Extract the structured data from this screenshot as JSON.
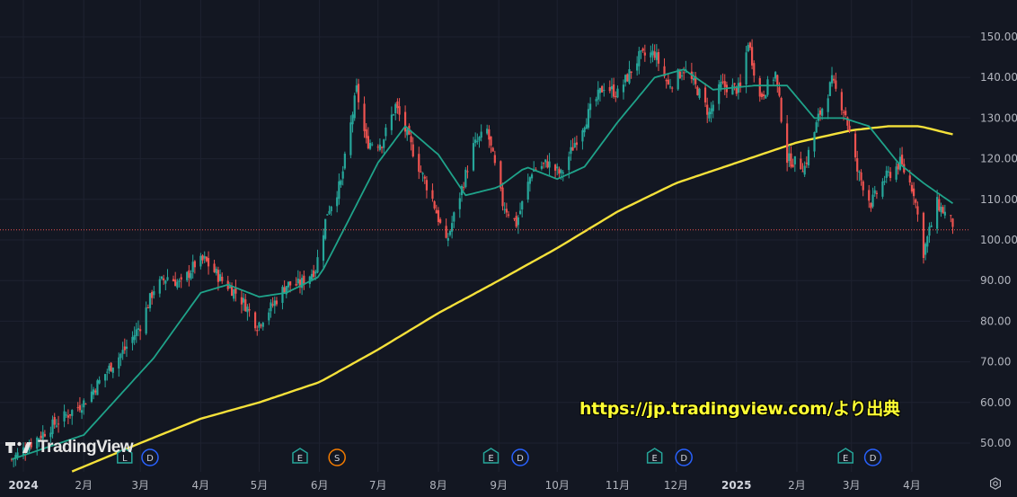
{
  "watermark": "TradingView",
  "source_note": "https://jp.tradingview.com/より出典",
  "colors": {
    "background": "#131722",
    "grid": "#1e2230",
    "candle_up": "#26a69a",
    "candle_down": "#ef5350",
    "ma_short": "#1fa38a",
    "ma_long": "#f5e13a",
    "price_line": "#ef5350",
    "axis_text": "#b2b5be"
  },
  "chart_data": {
    "type": "candlestick",
    "price_line": 102.5,
    "ylim": [
      43,
      156
    ],
    "y_ticks": [
      {
        "value": 150,
        "label": "150.00"
      },
      {
        "value": 140,
        "label": "140.00"
      },
      {
        "value": 130,
        "label": "130.00"
      },
      {
        "value": 120,
        "label": "120.00"
      },
      {
        "value": 110,
        "label": "110.00"
      },
      {
        "value": 100,
        "label": "100.00"
      },
      {
        "value": 90,
        "label": "90.00"
      },
      {
        "value": 80,
        "label": "80.00"
      },
      {
        "value": 70,
        "label": "70.00"
      },
      {
        "value": 60,
        "label": "60.00"
      },
      {
        "value": 50,
        "label": "50.00"
      }
    ],
    "x_ticks": [
      {
        "label": "2024",
        "date": "2024-01-01",
        "bold": true
      },
      {
        "label": "2月",
        "date": "2024-02-01"
      },
      {
        "label": "3月",
        "date": "2024-03-01"
      },
      {
        "label": "4月",
        "date": "2024-04-01"
      },
      {
        "label": "5月",
        "date": "2024-05-01"
      },
      {
        "label": "6月",
        "date": "2024-06-01"
      },
      {
        "label": "7月",
        "date": "2024-07-01"
      },
      {
        "label": "8月",
        "date": "2024-08-01"
      },
      {
        "label": "9月",
        "date": "2024-09-01"
      },
      {
        "label": "10月",
        "date": "2024-10-01"
      },
      {
        "label": "11月",
        "date": "2024-11-01"
      },
      {
        "label": "12月",
        "date": "2024-12-01"
      },
      {
        "label": "2025",
        "date": "2025-01-01",
        "bold": true
      },
      {
        "label": "2月",
        "date": "2025-02-01"
      },
      {
        "label": "3月",
        "date": "2025-03-01"
      },
      {
        "label": "4月",
        "date": "2025-04-01"
      }
    ],
    "x_range": [
      "2023-12-20",
      "2025-05-01"
    ],
    "price_path": [
      [
        "2023-12-26",
        46
      ],
      [
        "2024-01-15",
        54
      ],
      [
        "2024-02-01",
        60
      ],
      [
        "2024-02-15",
        69
      ],
      [
        "2024-02-22",
        73
      ],
      [
        "2024-03-01",
        79
      ],
      [
        "2024-03-08",
        88
      ],
      [
        "2024-03-15",
        91
      ],
      [
        "2024-03-22",
        89
      ],
      [
        "2024-03-29",
        94
      ],
      [
        "2024-04-03",
        95
      ],
      [
        "2024-04-12",
        90
      ],
      [
        "2024-04-19",
        87
      ],
      [
        "2024-04-24",
        84
      ],
      [
        "2024-04-30",
        79
      ],
      [
        "2024-05-08",
        84
      ],
      [
        "2024-05-15",
        89
      ],
      [
        "2024-05-22",
        89
      ],
      [
        "2024-05-30",
        93
      ],
      [
        "2024-06-05",
        107
      ],
      [
        "2024-06-12",
        114
      ],
      [
        "2024-06-20",
        137
      ],
      [
        "2024-06-25",
        124
      ],
      [
        "2024-07-03",
        124
      ],
      [
        "2024-07-10",
        133
      ],
      [
        "2024-07-15",
        127
      ],
      [
        "2024-07-22",
        118
      ],
      [
        "2024-07-29",
        110
      ],
      [
        "2024-08-05",
        99
      ],
      [
        "2024-08-12",
        111
      ],
      [
        "2024-08-19",
        123
      ],
      [
        "2024-08-26",
        127
      ],
      [
        "2024-09-03",
        109
      ],
      [
        "2024-09-10",
        104
      ],
      [
        "2024-09-18",
        117
      ],
      [
        "2024-09-26",
        119
      ],
      [
        "2024-10-03",
        116
      ],
      [
        "2024-10-10",
        124
      ],
      [
        "2024-10-18",
        132
      ],
      [
        "2024-10-25",
        138
      ],
      [
        "2024-11-01",
        136
      ],
      [
        "2024-11-07",
        141
      ],
      [
        "2024-11-12",
        145
      ],
      [
        "2024-11-20",
        146
      ],
      [
        "2024-11-27",
        138
      ],
      [
        "2024-12-05",
        142
      ],
      [
        "2024-12-12",
        137
      ],
      [
        "2024-12-18",
        131
      ],
      [
        "2024-12-24",
        138
      ],
      [
        "2025-01-03",
        137
      ],
      [
        "2025-01-07",
        149
      ],
      [
        "2025-01-13",
        135
      ],
      [
        "2025-01-21",
        141
      ],
      [
        "2025-01-27",
        120
      ],
      [
        "2025-02-05",
        118
      ],
      [
        "2025-02-12",
        130
      ],
      [
        "2025-02-19",
        139
      ],
      [
        "2025-02-26",
        131
      ],
      [
        "2025-03-04",
        117
      ],
      [
        "2025-03-11",
        109
      ],
      [
        "2025-03-18",
        115
      ],
      [
        "2025-03-26",
        119
      ],
      [
        "2025-04-02",
        112
      ],
      [
        "2025-04-07",
        97
      ],
      [
        "2025-04-14",
        109
      ],
      [
        "2025-04-22",
        104
      ]
    ],
    "ma_short": [
      [
        "2023-12-26",
        46
      ],
      [
        "2024-02-01",
        52
      ],
      [
        "2024-03-08",
        71
      ],
      [
        "2024-04-01",
        87
      ],
      [
        "2024-04-15",
        89
      ],
      [
        "2024-05-01",
        86
      ],
      [
        "2024-05-15",
        87
      ],
      [
        "2024-06-01",
        91
      ],
      [
        "2024-06-15",
        104
      ],
      [
        "2024-07-01",
        119
      ],
      [
        "2024-07-15",
        128
      ],
      [
        "2024-08-01",
        121
      ],
      [
        "2024-08-15",
        111
      ],
      [
        "2024-09-01",
        113
      ],
      [
        "2024-09-15",
        118
      ],
      [
        "2024-10-01",
        115
      ],
      [
        "2024-10-15",
        118
      ],
      [
        "2024-11-01",
        129
      ],
      [
        "2024-11-20",
        140
      ],
      [
        "2024-12-05",
        142
      ],
      [
        "2024-12-20",
        137
      ],
      [
        "2025-01-10",
        138
      ],
      [
        "2025-01-27",
        138
      ],
      [
        "2025-02-10",
        130
      ],
      [
        "2025-02-25",
        130
      ],
      [
        "2025-03-10",
        128
      ],
      [
        "2025-03-25",
        119
      ],
      [
        "2025-04-07",
        114
      ],
      [
        "2025-04-22",
        109
      ]
    ],
    "ma_long": [
      [
        "2024-01-26",
        43
      ],
      [
        "2024-03-01",
        50
      ],
      [
        "2024-04-01",
        56
      ],
      [
        "2024-05-01",
        60
      ],
      [
        "2024-06-01",
        65
      ],
      [
        "2024-07-01",
        73
      ],
      [
        "2024-08-01",
        82
      ],
      [
        "2024-09-01",
        90
      ],
      [
        "2024-10-01",
        98
      ],
      [
        "2024-11-01",
        107
      ],
      [
        "2024-12-01",
        114
      ],
      [
        "2025-01-01",
        119
      ],
      [
        "2025-02-01",
        124
      ],
      [
        "2025-03-01",
        127
      ],
      [
        "2025-03-20",
        128
      ],
      [
        "2025-04-05",
        128
      ],
      [
        "2025-04-22",
        126
      ]
    ],
    "event_markers": [
      {
        "letter": "L",
        "date": "2024-02-22",
        "kind": "earnings"
      },
      {
        "letter": "D",
        "date": "2024-03-06",
        "kind": "dividend"
      },
      {
        "letter": "E",
        "date": "2024-05-22",
        "kind": "earnings"
      },
      {
        "letter": "S",
        "date": "2024-06-10",
        "kind": "split"
      },
      {
        "letter": "E",
        "date": "2024-08-28",
        "kind": "earnings"
      },
      {
        "letter": "D",
        "date": "2024-09-12",
        "kind": "dividend"
      },
      {
        "letter": "E",
        "date": "2024-11-20",
        "kind": "earnings"
      },
      {
        "letter": "D",
        "date": "2024-12-05",
        "kind": "dividend"
      },
      {
        "letter": "E",
        "date": "2025-02-26",
        "kind": "earnings"
      },
      {
        "letter": "D",
        "date": "2025-03-12",
        "kind": "dividend"
      }
    ]
  }
}
